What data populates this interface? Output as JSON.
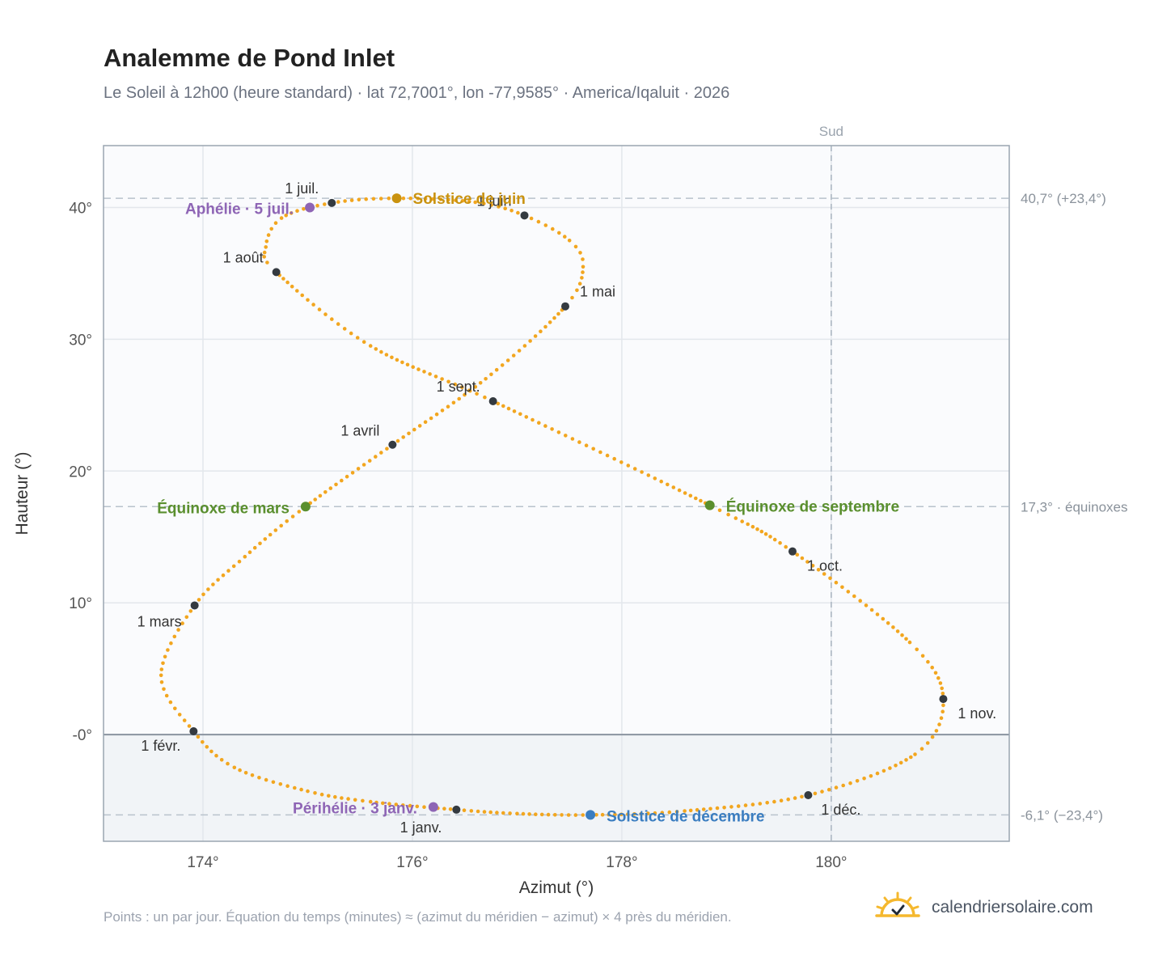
{
  "header": {
    "title": "Analemme de Pond Inlet",
    "subtitle": "Le Soleil à 12h00 (heure standard) · lat 72,7001°, lon -77,9585° · America/Iqaluit · 2026"
  },
  "footer": {
    "note": "Points : un par jour. Équation du temps (minutes) ≈ (azimut du méridien − azimut) × 4 près du méridien.",
    "brand": "calendriersolaire.com",
    "brand_icon": "sun-check-icon"
  },
  "chart_data": {
    "type": "scatter",
    "xlabel": "Azimut (°)",
    "ylabel": "Hauteur (°)",
    "xlim": [
      173.05,
      181.7
    ],
    "ylim": [
      -8.1,
      44.7
    ],
    "x_ticks": [
      {
        "value": 174,
        "label": "174°"
      },
      {
        "value": 176,
        "label": "176°"
      },
      {
        "value": 178,
        "label": "178°"
      },
      {
        "value": 180,
        "label": "180°"
      }
    ],
    "y_ticks": [
      {
        "value": 0,
        "label": "-0°"
      },
      {
        "value": 10,
        "label": "10°"
      },
      {
        "value": 20,
        "label": "20°"
      },
      {
        "value": 30,
        "label": "30°"
      },
      {
        "value": 40,
        "label": "40°"
      }
    ],
    "grid": true,
    "horizon": 0,
    "south_line": {
      "x": 180,
      "label": "Sud"
    },
    "ref_lines": [
      {
        "y": 40.7,
        "label": "40,7° (+23,4°)"
      },
      {
        "y": 17.3,
        "label": "17,3° · équinoxes"
      },
      {
        "y": -6.1,
        "label": "-6,1° (−23,4°)"
      }
    ],
    "colors": {
      "path": "#f2a61f",
      "month": "#343a40",
      "solstice_june": "#c9920f",
      "solstice_dec": "#3a7dc0",
      "equinox": "#5a8f2e",
      "apsis": "#8e65b5",
      "below_horizon": "#f1f4f7",
      "plot_bg": "#fafbfd"
    },
    "path_anchors": [
      {
        "x": 176.42,
        "y": -5.7
      },
      {
        "x": 175.6,
        "y": -5.1
      },
      {
        "x": 175.0,
        "y": -4.3
      },
      {
        "x": 174.3,
        "y": -2.5
      },
      {
        "x": 173.91,
        "y": 0.25
      },
      {
        "x": 173.6,
        "y": 4.5
      },
      {
        "x": 173.92,
        "y": 9.8
      },
      {
        "x": 174.4,
        "y": 13.5
      },
      {
        "x": 174.98,
        "y": 17.3
      },
      {
        "x": 175.81,
        "y": 22.0
      },
      {
        "x": 176.7,
        "y": 27.0
      },
      {
        "x": 177.46,
        "y": 32.5
      },
      {
        "x": 177.63,
        "y": 35.5
      },
      {
        "x": 177.5,
        "y": 37.5
      },
      {
        "x": 177.07,
        "y": 39.4
      },
      {
        "x": 176.6,
        "y": 40.4
      },
      {
        "x": 175.85,
        "y": 40.7
      },
      {
        "x": 175.23,
        "y": 40.35
      },
      {
        "x": 174.75,
        "y": 39.2
      },
      {
        "x": 174.6,
        "y": 37.0
      },
      {
        "x": 174.7,
        "y": 35.1
      },
      {
        "x": 175.6,
        "y": 29.5
      },
      {
        "x": 176.77,
        "y": 25.3
      },
      {
        "x": 178.84,
        "y": 17.4
      },
      {
        "x": 179.63,
        "y": 13.9
      },
      {
        "x": 180.75,
        "y": 7.0
      },
      {
        "x": 181.07,
        "y": 2.7
      },
      {
        "x": 180.8,
        "y": -1.5
      },
      {
        "x": 179.78,
        "y": -4.6
      },
      {
        "x": 178.6,
        "y": -5.8
      },
      {
        "x": 177.7,
        "y": -6.1
      },
      {
        "x": 177.0,
        "y": -6.0
      },
      {
        "x": 176.42,
        "y": -5.7
      }
    ],
    "months": [
      {
        "label": "1 janv.",
        "x": 176.42,
        "y": -5.7
      },
      {
        "label": "1 févr.",
        "x": 173.91,
        "y": 0.25
      },
      {
        "label": "1 mars",
        "x": 173.92,
        "y": 9.8
      },
      {
        "label": "1 avril",
        "x": 175.81,
        "y": 22.0
      },
      {
        "label": "1 mai",
        "x": 177.46,
        "y": 32.5
      },
      {
        "label": "1 juin",
        "x": 177.07,
        "y": 39.4
      },
      {
        "label": "1 juil.",
        "x": 175.23,
        "y": 40.35
      },
      {
        "label": "1 août",
        "x": 174.7,
        "y": 35.1
      },
      {
        "label": "1 sept.",
        "x": 176.77,
        "y": 25.3
      },
      {
        "label": "1 oct.",
        "x": 179.63,
        "y": 13.9
      },
      {
        "label": "1 nov.",
        "x": 181.07,
        "y": 2.7
      },
      {
        "label": "1 déc.",
        "x": 179.78,
        "y": -4.6
      }
    ],
    "events": [
      {
        "label": "Solstice de juin",
        "x": 175.85,
        "y": 40.7,
        "kind": "solstice_june"
      },
      {
        "label": "Solstice de décembre",
        "x": 177.7,
        "y": -6.1,
        "kind": "solstice_dec"
      },
      {
        "label": "Équinoxe de mars",
        "x": 174.98,
        "y": 17.3,
        "kind": "equinox"
      },
      {
        "label": "Équinoxe de septembre",
        "x": 178.84,
        "y": 17.4,
        "kind": "equinox"
      },
      {
        "label": "Aphélie · 5 juil.",
        "x": 175.02,
        "y": 40.0,
        "kind": "apsis"
      },
      {
        "label": "Périhélie · 3 janv.",
        "x": 176.2,
        "y": -5.5,
        "kind": "apsis"
      }
    ]
  }
}
